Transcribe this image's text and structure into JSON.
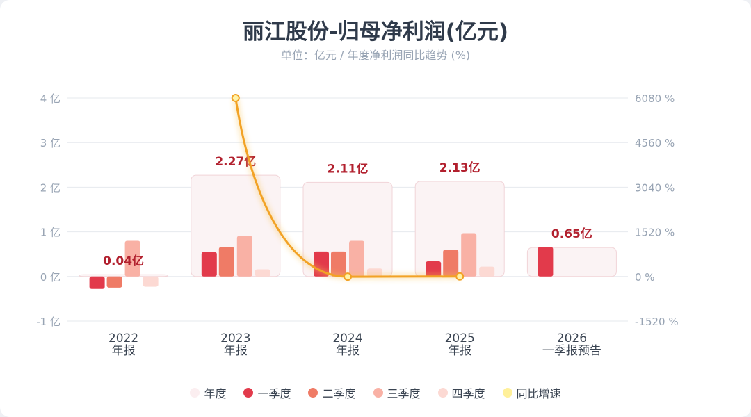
{
  "title": "丽江股份-归母净利润(亿元)",
  "subtitle": "单位：亿元 / 年度净利润同比趋势 (%)",
  "colors": {
    "year": "#fbeef0",
    "q1": "#e23a4b",
    "q2": "#ef7b66",
    "q3": "#f9b1a5",
    "q4": "#fcd9d3",
    "yoy": "#f2a225",
    "yoy_legend": "#fff09a",
    "value_label": "#b2202e"
  },
  "legend": [
    {
      "key": "year",
      "label": "年度"
    },
    {
      "key": "q1",
      "label": "一季度"
    },
    {
      "key": "q2",
      "label": "二季度"
    },
    {
      "key": "q3",
      "label": "三季度"
    },
    {
      "key": "q4",
      "label": "四季度"
    },
    {
      "key": "yoy_legend",
      "label": "同比增速"
    }
  ],
  "chart_data": {
    "type": "bar",
    "categories": [
      {
        "line1": "2022",
        "line2": "年报"
      },
      {
        "line1": "2023",
        "line2": "年报"
      },
      {
        "line1": "2024",
        "line2": "年报"
      },
      {
        "line1": "2025",
        "line2": "年报"
      },
      {
        "line1": "2026",
        "line2": "一季报预告"
      }
    ],
    "annual": [
      0.04,
      2.27,
      2.11,
      2.13,
      0.65
    ],
    "annual_labels": [
      "0.04亿",
      "2.27亿",
      "2.11亿",
      "2.13亿",
      "0.65亿"
    ],
    "series": [
      {
        "name": "一季度",
        "key": "q1",
        "values": [
          -0.28,
          0.55,
          0.56,
          0.34,
          0.66
        ]
      },
      {
        "name": "二季度",
        "key": "q2",
        "values": [
          -0.25,
          0.66,
          0.56,
          0.6,
          null
        ]
      },
      {
        "name": "三季度",
        "key": "q3",
        "values": [
          0.8,
          0.91,
          0.8,
          0.97,
          null
        ]
      },
      {
        "name": "四季度",
        "key": "q4",
        "values": [
          -0.23,
          0.16,
          0.18,
          0.22,
          null
        ]
      }
    ],
    "yoy": {
      "name": "同比增速",
      "values": [
        null,
        6080,
        -7,
        1,
        null
      ]
    },
    "y_left": {
      "min": -1,
      "max": 4,
      "ticks": [
        -1,
        0,
        1,
        2,
        3,
        4
      ],
      "tick_labels": [
        "-1 亿",
        "0 亿",
        "1 亿",
        "2 亿",
        "3 亿",
        "4 亿"
      ]
    },
    "y_right": {
      "min": -1520,
      "max": 6080,
      "ticks": [
        -1520,
        0,
        1520,
        3040,
        4560,
        6080
      ],
      "tick_labels": [
        "-1520 %",
        "0 %",
        "1520 %",
        "3040 %",
        "4560 %",
        "6080 %"
      ]
    },
    "grid": true,
    "legend_position": "bottom"
  }
}
